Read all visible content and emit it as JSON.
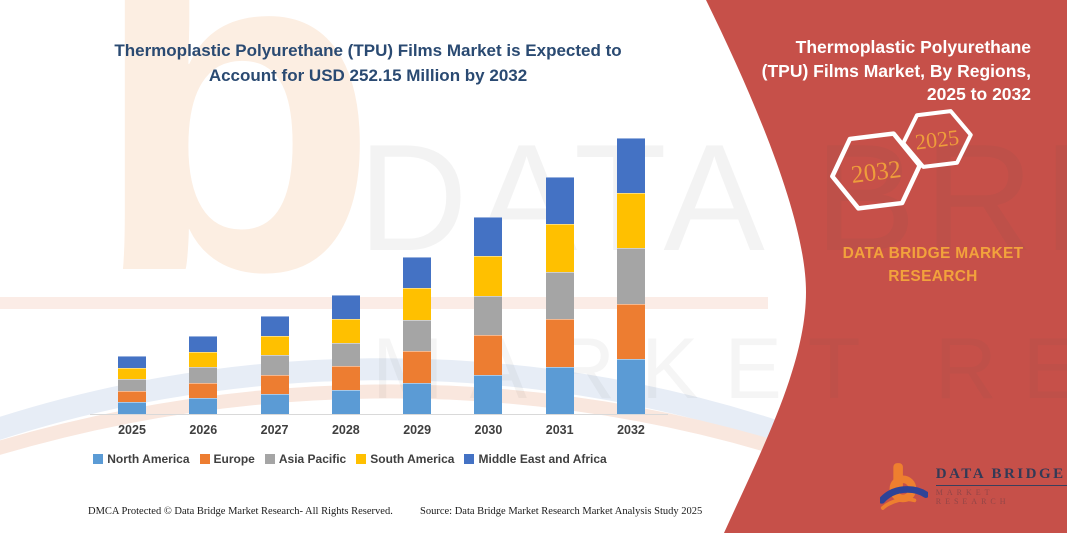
{
  "main_title": {
    "line1": "Thermoplastic Polyurethane (TPU) Films Market is Expected to",
    "line2": "Account for USD 252.15 Million by 2032"
  },
  "chart_data": {
    "type": "bar",
    "stacked": true,
    "title": "Thermoplastic Polyurethane (TPU) Films Market, By Regions, 2025 to 2032",
    "xlabel": "",
    "ylabel": "",
    "unit": "USD Million",
    "y_axis_visible": false,
    "grid": false,
    "legend_position": "bottom",
    "categories": [
      "2025",
      "2026",
      "2027",
      "2028",
      "2029",
      "2030",
      "2031",
      "2032"
    ],
    "series": [
      {
        "name": "North America",
        "color": "#5B9BD5",
        "values": [
          10.6,
          14.25,
          17.9,
          21.75,
          28.7,
          36.0,
          43.3,
          50.43
        ]
      },
      {
        "name": "Europe",
        "color": "#ED7D31",
        "values": [
          10.6,
          14.25,
          17.9,
          21.75,
          28.7,
          36.0,
          43.3,
          50.43
        ]
      },
      {
        "name": "Asia Pacific",
        "color": "#A5A5A5",
        "values": [
          10.6,
          14.25,
          17.9,
          21.75,
          28.7,
          36.0,
          43.3,
          50.43
        ]
      },
      {
        "name": "South America",
        "color": "#FFC000",
        "values": [
          10.6,
          14.25,
          17.9,
          21.75,
          28.7,
          36.0,
          43.3,
          50.43
        ]
      },
      {
        "name": "Middle East and Africa",
        "color": "#4472C4",
        "values": [
          10.6,
          14.25,
          17.9,
          21.75,
          28.7,
          36.0,
          43.3,
          50.43
        ]
      }
    ],
    "totals": [
      53.0,
      71.25,
      89.5,
      108.75,
      143.5,
      180.0,
      216.5,
      252.15
    ]
  },
  "side_panel": {
    "title": "Thermoplastic Polyurethane (TPU) Films Market, By Regions, 2025 to 2032",
    "hexagon_large_label": "2032",
    "hexagon_small_label": "2025",
    "brand_text": "DATA BRIDGE MARKET RESEARCH",
    "background_color": "#C65049",
    "accent_text_color": "#F2A23C"
  },
  "watermark": {
    "line1": "DATA BRIDGE",
    "line2": "MARKET RESEARCH",
    "logo_glyph": "b"
  },
  "logo": {
    "name": "DATA BRIDGE",
    "subtitle": "MARKET RESEARCH"
  },
  "footer": {
    "left": "DMCA Protected © Data Bridge Market Research-  All Rights Reserved.",
    "right": "Source: Data Bridge Market Research  Market Analysis Study 2025"
  }
}
